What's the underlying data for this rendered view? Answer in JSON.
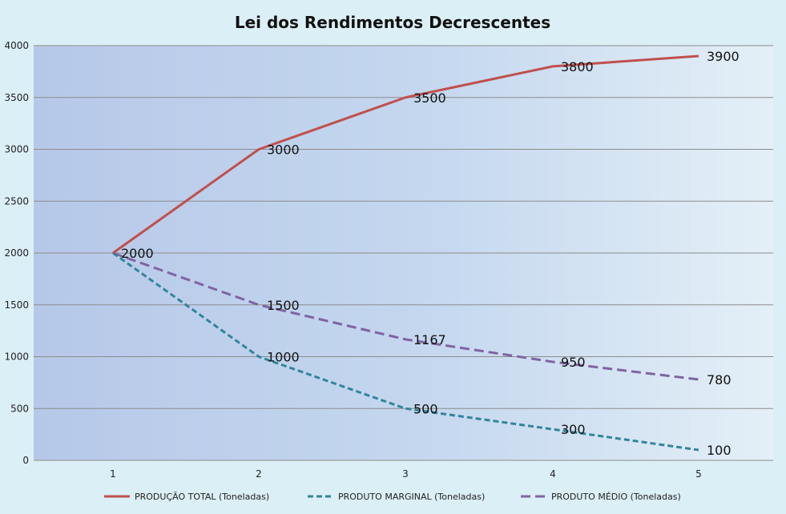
{
  "chart_data": {
    "type": "line",
    "title": "Lei dos Rendimentos Decrescentes",
    "xlabel": "",
    "ylabel": "",
    "categories": [
      "1",
      "2",
      "3",
      "4",
      "5"
    ],
    "ylim": [
      0,
      4000
    ],
    "yticks": [
      0,
      500,
      1000,
      1500,
      2000,
      2500,
      3000,
      3500,
      4000
    ],
    "grid": true,
    "legend_position": "bottom",
    "series": [
      {
        "name": "PRODUÇÃO TOTAL (Toneladas)",
        "values": [
          2000,
          3000,
          3500,
          3800,
          3900
        ],
        "labels": [
          "2000",
          "3000",
          "3500",
          "3800",
          "3900"
        ],
        "color": "#c0504d",
        "dash": "solid"
      },
      {
        "name": "PRODUTO MARGINAL (Toneladas)",
        "values": [
          2000,
          1000,
          500,
          300,
          100
        ],
        "labels": [
          "2000",
          "1000",
          "500",
          "300",
          "100"
        ],
        "color": "#31859c",
        "dash": "dashed"
      },
      {
        "name": "PRODUTO MÉDIO (Toneladas)",
        "values": [
          2000,
          1500,
          1167,
          950,
          780
        ],
        "labels": [
          "2000",
          "1500",
          "1167",
          "950",
          "780"
        ],
        "color": "#8064a2",
        "dash": "dashed"
      }
    ]
  }
}
